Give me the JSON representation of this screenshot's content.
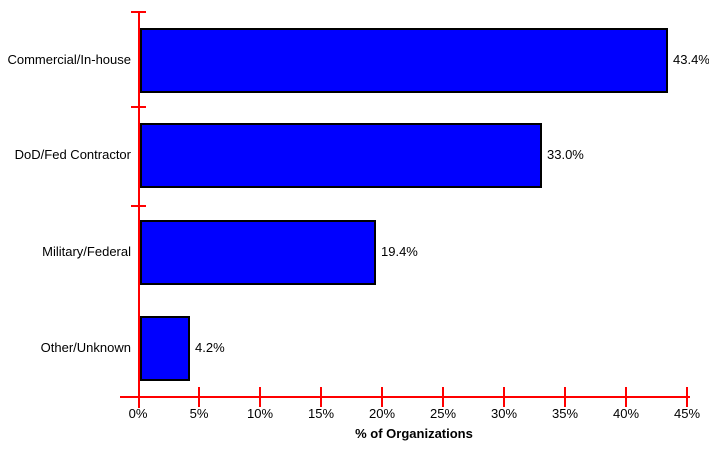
{
  "chart_data": {
    "type": "bar",
    "orientation": "horizontal",
    "title": "",
    "categories": [
      "Commercial/In-house",
      "DoD/Fed Contractor",
      "Military/Federal",
      "Other/Unknown"
    ],
    "values": [
      43.4,
      33.0,
      19.4,
      4.2
    ],
    "value_labels": [
      "43.4%",
      "33.0%",
      "19.4%",
      "4.2%"
    ],
    "xlabel": "% of Organizations",
    "ylabel": "",
    "x_ticks": [
      "0%",
      "5%",
      "10%",
      "15%",
      "20%",
      "25%",
      "30%",
      "35%",
      "40%",
      "45%"
    ],
    "xlim": [
      0,
      45
    ],
    "grid": false,
    "legend": false,
    "colors": {
      "bar_fill": "#0000ff",
      "bar_border": "#000000",
      "axis": "#ff0000",
      "text": "#000000",
      "background": "#ffffff"
    }
  }
}
